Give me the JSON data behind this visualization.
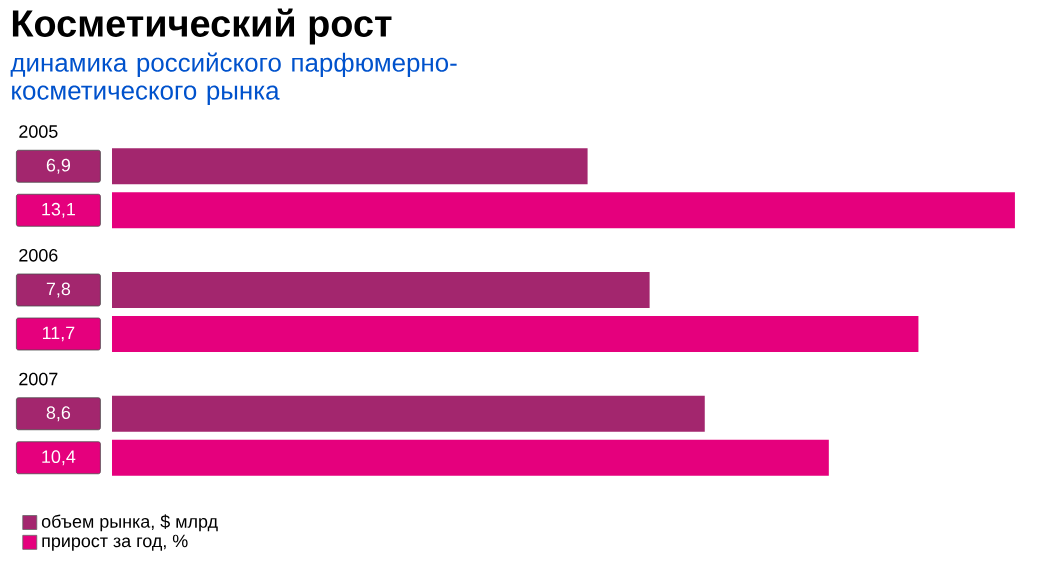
{
  "chart_data": {
    "type": "bar",
    "orientation": "horizontal",
    "title": "Косметический рост",
    "subtitle": "динамика российского парфюмерно-косметического рынка",
    "categories": [
      "2005",
      "2006",
      "2007"
    ],
    "series": [
      {
        "name": "объем рынка, $ млрд",
        "color": "#a3266e",
        "values": [
          6.9,
          7.8,
          8.6
        ],
        "value_labels": [
          "6,9",
          "7,8",
          "8,6"
        ]
      },
      {
        "name": "прирост за год, %",
        "color": "#e5007d",
        "values": [
          13.1,
          11.7,
          10.4
        ],
        "value_labels": [
          "13,1",
          "11,7",
          "10,4"
        ]
      }
    ],
    "legend": "bottom left",
    "tick_labels": false
  }
}
